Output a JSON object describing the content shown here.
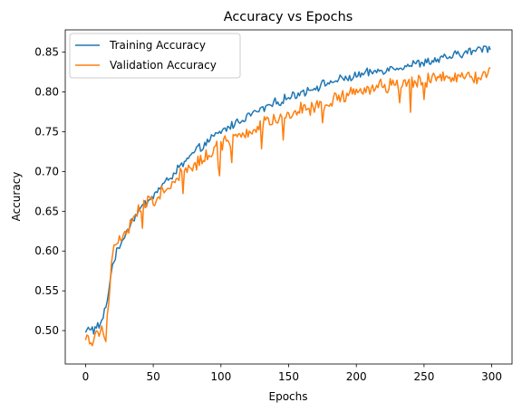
{
  "chart_data": {
    "type": "line",
    "title": "Accuracy vs Epochs",
    "xlabel": "Epochs",
    "ylabel": "Accuracy",
    "xlim": [
      -15,
      315
    ],
    "ylim": [
      0.458,
      0.878
    ],
    "xticks": [
      0,
      50,
      100,
      150,
      200,
      250,
      300
    ],
    "yticks": [
      0.5,
      0.55,
      0.6,
      0.65,
      0.7,
      0.75,
      0.8,
      0.85
    ],
    "grid": false,
    "legend_position": "top-left",
    "series_anchors": [
      {
        "name": "Training Accuracy",
        "color": "#1f77b4",
        "anchors": [
          [
            0,
            0.497
          ],
          [
            3,
            0.505
          ],
          [
            6,
            0.5
          ],
          [
            9,
            0.505
          ],
          [
            12,
            0.51
          ],
          [
            15,
            0.53
          ],
          [
            18,
            0.56
          ],
          [
            20,
            0.585
          ],
          [
            25,
            0.605
          ],
          [
            30,
            0.625
          ],
          [
            35,
            0.64
          ],
          [
            40,
            0.652
          ],
          [
            50,
            0.67
          ],
          [
            60,
            0.688
          ],
          [
            70,
            0.706
          ],
          [
            80,
            0.723
          ],
          [
            90,
            0.737
          ],
          [
            100,
            0.75
          ],
          [
            120,
            0.77
          ],
          [
            140,
            0.786
          ],
          [
            160,
            0.8
          ],
          [
            180,
            0.812
          ],
          [
            200,
            0.82
          ],
          [
            220,
            0.828
          ],
          [
            240,
            0.834
          ],
          [
            260,
            0.84
          ],
          [
            280,
            0.849
          ],
          [
            300,
            0.857
          ]
        ],
        "noise": 0.0045
      },
      {
        "name": "Validation Accuracy",
        "color": "#ff7f0e",
        "anchors": [
          [
            0,
            0.494
          ],
          [
            3,
            0.492
          ],
          [
            5,
            0.482
          ],
          [
            7,
            0.498
          ],
          [
            9,
            0.49
          ],
          [
            12,
            0.51
          ],
          [
            15,
            0.49
          ],
          [
            17,
            0.54
          ],
          [
            20,
            0.602
          ],
          [
            25,
            0.615
          ],
          [
            30,
            0.625
          ],
          [
            35,
            0.638
          ],
          [
            40,
            0.652
          ],
          [
            50,
            0.665
          ],
          [
            60,
            0.68
          ],
          [
            70,
            0.7
          ],
          [
            80,
            0.71
          ],
          [
            90,
            0.72
          ],
          [
            100,
            0.735
          ],
          [
            120,
            0.75
          ],
          [
            140,
            0.766
          ],
          [
            160,
            0.778
          ],
          [
            180,
            0.788
          ],
          [
            200,
            0.8
          ],
          [
            220,
            0.806
          ],
          [
            240,
            0.81
          ],
          [
            260,
            0.815
          ],
          [
            280,
            0.818
          ],
          [
            300,
            0.822
          ]
        ],
        "noise": 0.0075
      }
    ]
  }
}
